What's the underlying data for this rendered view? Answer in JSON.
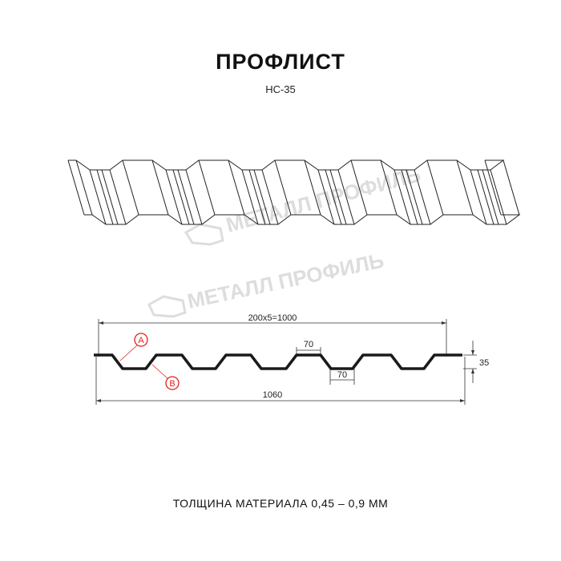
{
  "title": "ПРОФЛИСТ",
  "subtitle": "НС-35",
  "footer": "ТОЛЩИНА МАТЕРИАЛА 0,45 – 0,9 ММ",
  "watermark": "МЕТАЛЛ ПРОФИЛЬ",
  "dimensions": {
    "pitch_total": "200х5=1000",
    "crest_width": "70",
    "trough_width": "70",
    "height": "35",
    "total_width": "1060"
  },
  "markers": {
    "a": "A",
    "b": "B"
  },
  "colors": {
    "profile": "#1a1a1a",
    "marker": "#e0201b",
    "watermark": "#dddddd"
  }
}
